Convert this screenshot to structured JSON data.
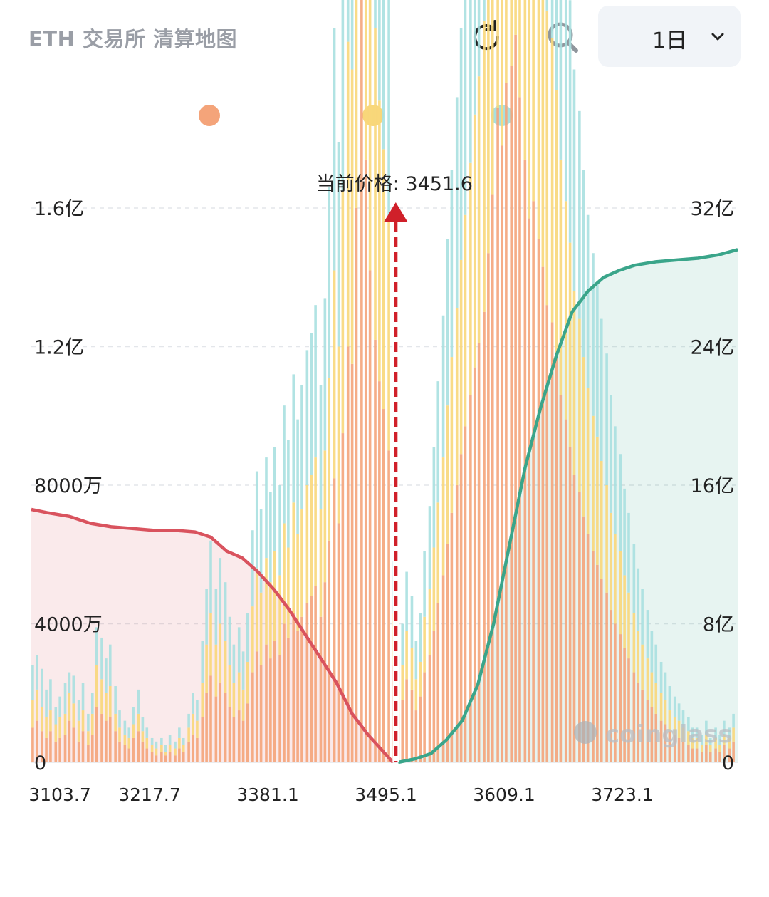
{
  "header": {
    "title": "ETH 交易所 清算地图",
    "period_label": "1日",
    "icons": [
      "refresh-icon",
      "search-icon",
      "chevron-down-icon"
    ]
  },
  "legend": {
    "dots": [
      {
        "color": "#f4a47a"
      },
      {
        "color": "#f8d77a"
      },
      {
        "color": "#a8e0e0"
      }
    ]
  },
  "chart_data": {
    "type": "bar",
    "current_price_label": "当前价格: 3451.6",
    "current_price": 3451.6,
    "x_tick_labels": [
      "3103.7",
      "3217.7",
      "3381.1",
      "3495.1",
      "3609.1",
      "3723.1"
    ],
    "y_left_ticks": [
      "0",
      "4000万",
      "8000万",
      "1.2亿",
      "1.6亿"
    ],
    "y_left_range": [
      0,
      160000000
    ],
    "y_right_ticks": [
      "0",
      "8亿",
      "16亿",
      "24亿",
      "32亿"
    ],
    "y_right_range": [
      0,
      3200000000
    ],
    "x_range": [
      3103.7,
      3778
    ],
    "grid": true,
    "watermark": "coinglass",
    "colors": {
      "tier1": "#f4a47a",
      "tier2": "#f8d77a",
      "tier3": "#a8e0e0",
      "long_cumulative": "#d9535e",
      "short_cumulative": "#3aa58a",
      "current_price_line": "#d0202a"
    },
    "series": [
      {
        "values_note": "stacked bars: [price, tier1, tier2, tier3] in left-axis units (万)",
        "bars": [
          [
            3105,
            1000,
            800,
            1000
          ],
          [
            3109,
            1200,
            900,
            1000
          ],
          [
            3114,
            900,
            700,
            1100
          ],
          [
            3118,
            700,
            600,
            800
          ],
          [
            3122,
            900,
            600,
            900
          ],
          [
            3127,
            600,
            500,
            500
          ],
          [
            3131,
            700,
            600,
            600
          ],
          [
            3136,
            800,
            600,
            900
          ],
          [
            3140,
            1200,
            800,
            600
          ],
          [
            3144,
            1000,
            700,
            800
          ],
          [
            3149,
            600,
            600,
            600
          ],
          [
            3153,
            900,
            600,
            800
          ],
          [
            3158,
            500,
            400,
            500
          ],
          [
            3162,
            800,
            600,
            600
          ],
          [
            3166,
            1600,
            1200,
            1100
          ],
          [
            3171,
            1400,
            1000,
            1200
          ],
          [
            3175,
            1200,
            800,
            1000
          ],
          [
            3179,
            1300,
            900,
            1200
          ],
          [
            3184,
            900,
            500,
            800
          ],
          [
            3188,
            600,
            400,
            500
          ],
          [
            3193,
            500,
            300,
            400
          ],
          [
            3197,
            400,
            300,
            300
          ],
          [
            3201,
            700,
            400,
            500
          ],
          [
            3206,
            900,
            500,
            700
          ],
          [
            3210,
            600,
            300,
            400
          ],
          [
            3214,
            400,
            300,
            300
          ],
          [
            3219,
            300,
            200,
            200
          ],
          [
            3223,
            200,
            200,
            200
          ],
          [
            3228,
            300,
            200,
            200
          ],
          [
            3232,
            200,
            100,
            200
          ],
          [
            3236,
            300,
            200,
            300
          ],
          [
            3241,
            200,
            200,
            200
          ],
          [
            3245,
            400,
            300,
            300
          ],
          [
            3249,
            300,
            200,
            200
          ],
          [
            3254,
            600,
            400,
            400
          ],
          [
            3258,
            800,
            600,
            600
          ],
          [
            3262,
            700,
            500,
            600
          ],
          [
            3267,
            1300,
            1000,
            1200
          ],
          [
            3271,
            2000,
            1400,
            1600
          ],
          [
            3275,
            2500,
            1800,
            2100
          ],
          [
            3280,
            1900,
            1500,
            1600
          ],
          [
            3284,
            2300,
            1700,
            1900
          ],
          [
            3289,
            2000,
            1500,
            1700
          ],
          [
            3293,
            1600,
            1200,
            1400
          ],
          [
            3297,
            1300,
            1000,
            1100
          ],
          [
            3302,
            1500,
            1100,
            1300
          ],
          [
            3306,
            1200,
            900,
            1100
          ],
          [
            3310,
            1700,
            1200,
            1400
          ],
          [
            3315,
            2600,
            1900,
            2200
          ],
          [
            3319,
            3200,
            2400,
            2800
          ],
          [
            3323,
            2800,
            2100,
            2400
          ],
          [
            3328,
            3400,
            2500,
            2900
          ],
          [
            3332,
            3000,
            2200,
            2600
          ],
          [
            3336,
            3500,
            2600,
            3000
          ],
          [
            3341,
            3100,
            2300,
            2600
          ],
          [
            3345,
            4000,
            2900,
            3400
          ],
          [
            3349,
            3600,
            2600,
            3100
          ],
          [
            3354,
            4300,
            3200,
            3700
          ],
          [
            3358,
            3800,
            2800,
            3300
          ],
          [
            3362,
            4200,
            3100,
            3600
          ],
          [
            3367,
            4600,
            3400,
            3900
          ],
          [
            3371,
            4800,
            3500,
            4100
          ],
          [
            3375,
            5100,
            3700,
            4400
          ],
          [
            3380,
            4200,
            3100,
            3600
          ],
          [
            3384,
            5200,
            3800,
            4400
          ],
          [
            3388,
            6400,
            4700,
            5500
          ],
          [
            3393,
            8200,
            6000,
            7000
          ],
          [
            3397,
            6900,
            5100,
            5900
          ],
          [
            3401,
            9500,
            7000,
            8100
          ],
          [
            3406,
            12000,
            8800,
            10200
          ],
          [
            3410,
            11500,
            8500,
            9800
          ],
          [
            3414,
            16000,
            11700,
            13600
          ],
          [
            3419,
            22500,
            16500,
            19200
          ],
          [
            3423,
            17400,
            12800,
            14800
          ],
          [
            3427,
            14200,
            10400,
            12100
          ],
          [
            3432,
            12200,
            9000,
            10400
          ],
          [
            3436,
            11000,
            8100,
            9400
          ],
          [
            3440,
            10200,
            7500,
            8700
          ],
          [
            3445,
            9000,
            6600,
            7700
          ],
          [
            3449,
            2800,
            1500,
            1500
          ],
          [
            3454,
            1400,
            800,
            900
          ],
          [
            3458,
            1800,
            1000,
            1200
          ],
          [
            3462,
            2400,
            1400,
            1700
          ],
          [
            3467,
            2100,
            1200,
            1500
          ],
          [
            3471,
            1500,
            900,
            1100
          ],
          [
            3475,
            1900,
            1000,
            1400
          ],
          [
            3479,
            2600,
            1600,
            1900
          ],
          [
            3484,
            3100,
            1900,
            2400
          ],
          [
            3488,
            3800,
            2400,
            2900
          ],
          [
            3492,
            4600,
            2900,
            3500
          ],
          [
            3497,
            5400,
            3400,
            4100
          ],
          [
            3501,
            6300,
            4000,
            4800
          ],
          [
            3505,
            7200,
            4500,
            5400
          ],
          [
            3510,
            8000,
            5100,
            6100
          ],
          [
            3514,
            8900,
            5600,
            6700
          ],
          [
            3518,
            9700,
            6100,
            7400
          ],
          [
            3523,
            10600,
            6700,
            8000
          ],
          [
            3527,
            11400,
            7300,
            8800
          ],
          [
            3531,
            12100,
            7700,
            9200
          ],
          [
            3536,
            13000,
            8400,
            10000
          ],
          [
            3540,
            14700,
            9500,
            11300
          ],
          [
            3544,
            16400,
            10500,
            12500
          ],
          [
            3549,
            18900,
            12200,
            14700
          ],
          [
            3553,
            17800,
            11400,
            13600
          ],
          [
            3557,
            19600,
            12600,
            14900
          ],
          [
            3562,
            20100,
            12900,
            15400
          ],
          [
            3566,
            21000,
            13500,
            16000
          ],
          [
            3570,
            19200,
            12300,
            14700
          ],
          [
            3575,
            17400,
            11200,
            13300
          ],
          [
            3579,
            15700,
            10100,
            12000
          ],
          [
            3583,
            16200,
            10400,
            12400
          ],
          [
            3588,
            15100,
            9700,
            11600
          ],
          [
            3592,
            14300,
            9200,
            10900
          ],
          [
            3596,
            13200,
            8500,
            10200
          ],
          [
            3601,
            12700,
            8200,
            9700
          ],
          [
            3605,
            11800,
            7600,
            9100
          ],
          [
            3609,
            10600,
            6800,
            8100
          ],
          [
            3614,
            9900,
            6300,
            7600
          ],
          [
            3618,
            9100,
            5900,
            7000
          ],
          [
            3622,
            8300,
            5300,
            6400
          ],
          [
            3627,
            7800,
            5000,
            6000
          ],
          [
            3631,
            7100,
            4600,
            5400
          ],
          [
            3635,
            6600,
            4200,
            5000
          ],
          [
            3640,
            6100,
            3900,
            4700
          ],
          [
            3644,
            5700,
            3700,
            4400
          ],
          [
            3648,
            5300,
            3400,
            4100
          ],
          [
            3653,
            4900,
            3100,
            3800
          ],
          [
            3657,
            4400,
            2800,
            3400
          ],
          [
            3661,
            4000,
            2600,
            3100
          ],
          [
            3666,
            3700,
            2400,
            2800
          ],
          [
            3670,
            3300,
            2100,
            2500
          ],
          [
            3674,
            3000,
            1900,
            2300
          ],
          [
            3679,
            2600,
            1700,
            2000
          ],
          [
            3683,
            2300,
            1500,
            1800
          ],
          [
            3687,
            2100,
            1300,
            1600
          ],
          [
            3692,
            1800,
            1200,
            1400
          ],
          [
            3696,
            1600,
            1000,
            1200
          ],
          [
            3700,
            1400,
            900,
            1100
          ],
          [
            3705,
            1200,
            800,
            900
          ],
          [
            3709,
            1100,
            700,
            800
          ],
          [
            3713,
            900,
            600,
            700
          ],
          [
            3718,
            800,
            500,
            600
          ],
          [
            3722,
            700,
            500,
            500
          ],
          [
            3726,
            600,
            400,
            500
          ],
          [
            3731,
            500,
            400,
            400
          ],
          [
            3735,
            400,
            300,
            300
          ],
          [
            3739,
            400,
            300,
            300
          ],
          [
            3744,
            300,
            200,
            300
          ],
          [
            3748,
            500,
            300,
            400
          ],
          [
            3752,
            300,
            200,
            200
          ],
          [
            3757,
            400,
            300,
            300
          ],
          [
            3761,
            300,
            200,
            300
          ],
          [
            3765,
            500,
            300,
            400
          ],
          [
            3770,
            400,
            300,
            300
          ],
          [
            3774,
            600,
            400,
            400
          ]
        ]
      },
      {
        "name": "",
        "role": "long_cumulative",
        "points": [
          [
            3103.7,
            73
          ],
          [
            3120,
            72
          ],
          [
            3140,
            71
          ],
          [
            3160,
            69
          ],
          [
            3180,
            68
          ],
          [
            3200,
            67.5
          ],
          [
            3220,
            67
          ],
          [
            3240,
            67
          ],
          [
            3260,
            66.5
          ],
          [
            3275,
            65
          ],
          [
            3290,
            61
          ],
          [
            3305,
            59
          ],
          [
            3320,
            55
          ],
          [
            3335,
            50
          ],
          [
            3350,
            44
          ],
          [
            3365,
            37
          ],
          [
            3380,
            30
          ],
          [
            3395,
            23
          ],
          [
            3410,
            14
          ],
          [
            3425,
            8
          ],
          [
            3440,
            3
          ],
          [
            3449,
            0
          ]
        ],
        "unit": "百万"
      },
      {
        "name": "",
        "role": "short_cumulative",
        "points": [
          [
            3454,
            0
          ],
          [
            3470,
            0.2
          ],
          [
            3485,
            0.5
          ],
          [
            3500,
            1.3
          ],
          [
            3515,
            2.4
          ],
          [
            3530,
            4.5
          ],
          [
            3545,
            8
          ],
          [
            3560,
            12.5
          ],
          [
            3575,
            17
          ],
          [
            3590,
            20.5
          ],
          [
            3605,
            23.5
          ],
          [
            3620,
            26
          ],
          [
            3635,
            27.2
          ],
          [
            3650,
            28
          ],
          [
            3665,
            28.4
          ],
          [
            3680,
            28.7
          ],
          [
            3700,
            28.9
          ],
          [
            3720,
            29
          ],
          [
            3740,
            29.1
          ],
          [
            3760,
            29.3
          ],
          [
            3778,
            29.6
          ]
        ],
        "unit": "亿"
      }
    ]
  }
}
